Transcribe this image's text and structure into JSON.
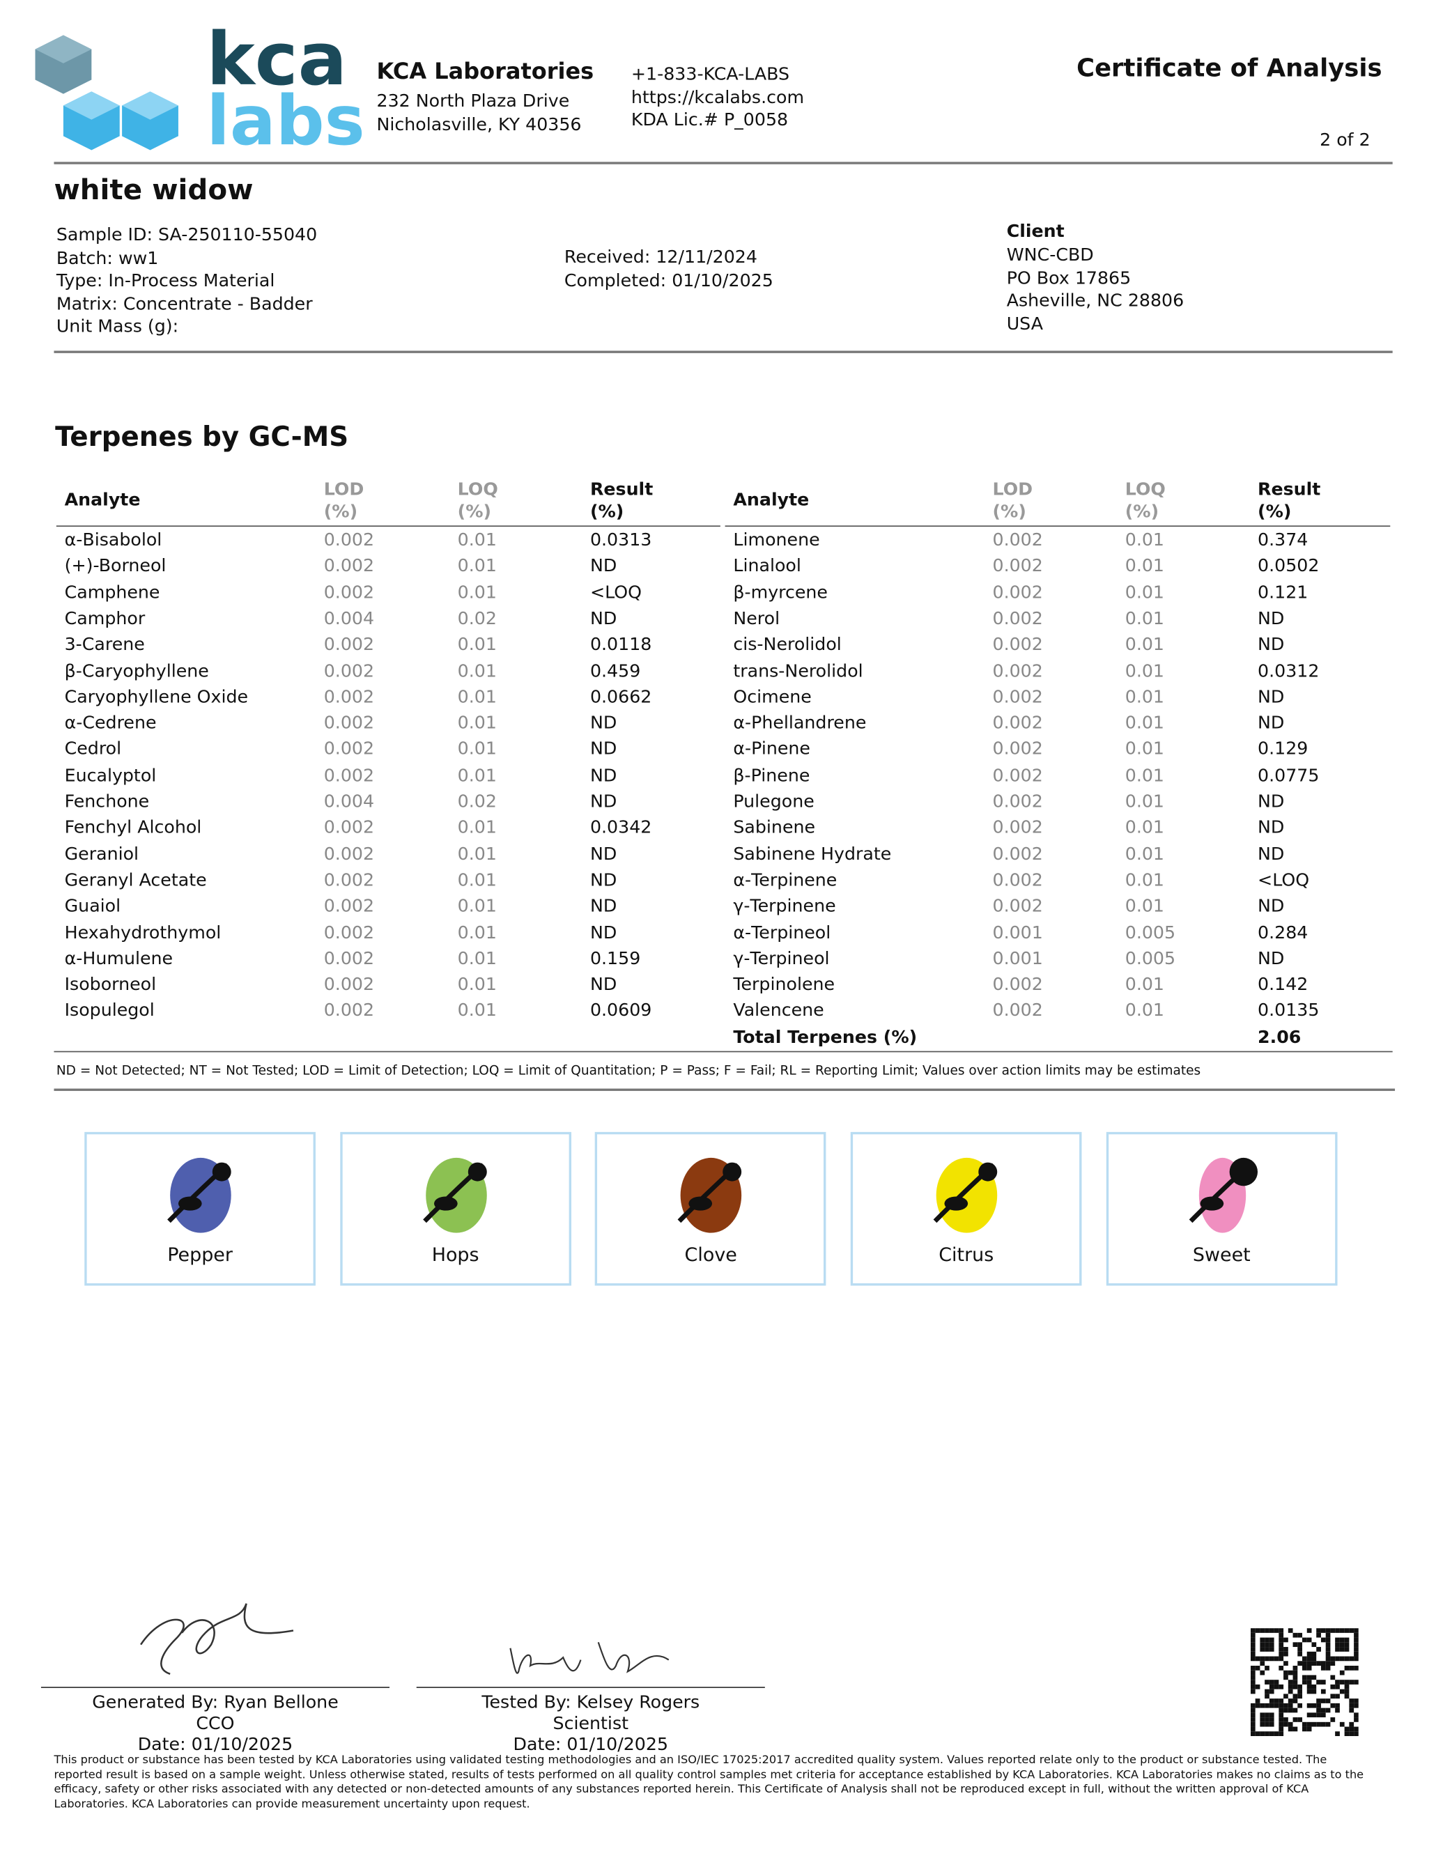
{
  "header": {
    "logo_top": "kca",
    "logo_bottom": "labs",
    "company": "KCA Laboratories",
    "address": [
      "232 North Plaza Drive",
      "Nicholasville, KY 40356"
    ],
    "contact": [
      "+1-833-KCA-LABS",
      "https://kcalabs.com",
      "KDA Lic.# P_0058"
    ],
    "title": "Certificate of Analysis",
    "page": "2 of 2"
  },
  "sample": {
    "name": "white widow",
    "details": [
      "Sample ID: SA-250110-55040",
      "Batch: ww1",
      "Type: In-Process Material",
      "Matrix: Concentrate - Badder",
      "Unit Mass (g):"
    ],
    "dates": [
      "Received: 12/11/2024",
      "Completed: 01/10/2025"
    ],
    "client_label": "Client",
    "client": [
      "WNC-CBD",
      "PO Box 17865",
      "Asheville, NC 28806",
      "USA"
    ]
  },
  "section_title": "Terpenes by GC-MS",
  "tables": [
    {
      "columns": [
        {
          "name": "Analyte"
        },
        {
          "name": "LOD",
          "unit": "(%)"
        },
        {
          "name": "LOQ",
          "unit": "(%)"
        },
        {
          "name": "Result",
          "unit": "(%)"
        }
      ],
      "rows": [
        [
          "α-Bisabolol",
          "0.002",
          "0.01",
          "0.0313"
        ],
        [
          "(+)-Borneol",
          "0.002",
          "0.01",
          "ND"
        ],
        [
          "Camphene",
          "0.002",
          "0.01",
          "<LOQ"
        ],
        [
          "Camphor",
          "0.004",
          "0.02",
          "ND"
        ],
        [
          "3-Carene",
          "0.002",
          "0.01",
          "0.0118"
        ],
        [
          "β-Caryophyllene",
          "0.002",
          "0.01",
          "0.459"
        ],
        [
          "Caryophyllene Oxide",
          "0.002",
          "0.01",
          "0.0662"
        ],
        [
          "α-Cedrene",
          "0.002",
          "0.01",
          "ND"
        ],
        [
          "Cedrol",
          "0.002",
          "0.01",
          "ND"
        ],
        [
          "Eucalyptol",
          "0.002",
          "0.01",
          "ND"
        ],
        [
          "Fenchone",
          "0.004",
          "0.02",
          "ND"
        ],
        [
          "Fenchyl Alcohol",
          "0.002",
          "0.01",
          "0.0342"
        ],
        [
          "Geraniol",
          "0.002",
          "0.01",
          "ND"
        ],
        [
          "Geranyl Acetate",
          "0.002",
          "0.01",
          "ND"
        ],
        [
          "Guaiol",
          "0.002",
          "0.01",
          "ND"
        ],
        [
          "Hexahydrothymol",
          "0.002",
          "0.01",
          "ND"
        ],
        [
          "α-Humulene",
          "0.002",
          "0.01",
          "0.159"
        ],
        [
          "Isoborneol",
          "0.002",
          "0.01",
          "ND"
        ],
        [
          "Isopulegol",
          "0.002",
          "0.01",
          "0.0609"
        ]
      ]
    },
    {
      "columns": [
        {
          "name": "Analyte"
        },
        {
          "name": "LOD",
          "unit": "(%)"
        },
        {
          "name": "LOQ",
          "unit": "(%)"
        },
        {
          "name": "Result",
          "unit": "(%)"
        }
      ],
      "rows": [
        [
          "Limonene",
          "0.002",
          "0.01",
          "0.374"
        ],
        [
          "Linalool",
          "0.002",
          "0.01",
          "0.0502"
        ],
        [
          "β-myrcene",
          "0.002",
          "0.01",
          "0.121"
        ],
        [
          "Nerol",
          "0.002",
          "0.01",
          "ND"
        ],
        [
          "cis-Nerolidol",
          "0.002",
          "0.01",
          "ND"
        ],
        [
          "trans-Nerolidol",
          "0.002",
          "0.01",
          "0.0312"
        ],
        [
          "Ocimene",
          "0.002",
          "0.01",
          "ND"
        ],
        [
          "α-Phellandrene",
          "0.002",
          "0.01",
          "ND"
        ],
        [
          "α-Pinene",
          "0.002",
          "0.01",
          "0.129"
        ],
        [
          "β-Pinene",
          "0.002",
          "0.01",
          "0.0775"
        ],
        [
          "Pulegone",
          "0.002",
          "0.01",
          "ND"
        ],
        [
          "Sabinene",
          "0.002",
          "0.01",
          "ND"
        ],
        [
          "Sabinene Hydrate",
          "0.002",
          "0.01",
          "ND"
        ],
        [
          "α-Terpinene",
          "0.002",
          "0.01",
          "<LOQ"
        ],
        [
          "γ-Terpinene",
          "0.002",
          "0.01",
          "ND"
        ],
        [
          "α-Terpineol",
          "0.001",
          "0.005",
          "0.284"
        ],
        [
          "γ-Terpineol",
          "0.001",
          "0.005",
          "ND"
        ],
        [
          "Terpinolene",
          "0.002",
          "0.01",
          "0.142"
        ],
        [
          "Valencene",
          "0.002",
          "0.01",
          "0.0135"
        ]
      ],
      "total": {
        "label": "Total Terpenes (%)",
        "value": "2.06"
      }
    }
  ],
  "footnote": "ND = Not Detected; NT = Not Tested; LOD = Limit of Detection; LOQ = Limit of Quantitation; P = Pass; F = Fail; RL = Reporting Limit; Values over action limits may be estimates",
  "aromas": [
    "Pepper",
    "Hops",
    "Clove",
    "Citrus",
    "Sweet"
  ],
  "signatures": [
    {
      "lines": [
        "Generated By: Ryan Bellone",
        "CCO",
        "Date: 01/10/2025"
      ]
    },
    {
      "lines": [
        "Tested By: Kelsey Rogers",
        "Scientist",
        "Date: 01/10/2025"
      ]
    }
  ],
  "disclaimer": "This product or substance has been tested by KCA Laboratories using validated testing methodologies and an ISO/IEC 17025:2017 accredited quality system. Values reported relate only to the product or substance tested. The reported result is based on a sample weight. Unless otherwise stated, results of tests performed on all quality control samples met criteria for acceptance established by KCA Laboratories. KCA Laboratories makes no claims as to the efficacy, safety or other risks associated with any detected or non-detected amounts of any substances reported herein. This Certificate of Analysis shall not be reproduced except in full, without the written approval of KCA Laboratories. KCA Laboratories can provide measurement uncertainty upon request."
}
